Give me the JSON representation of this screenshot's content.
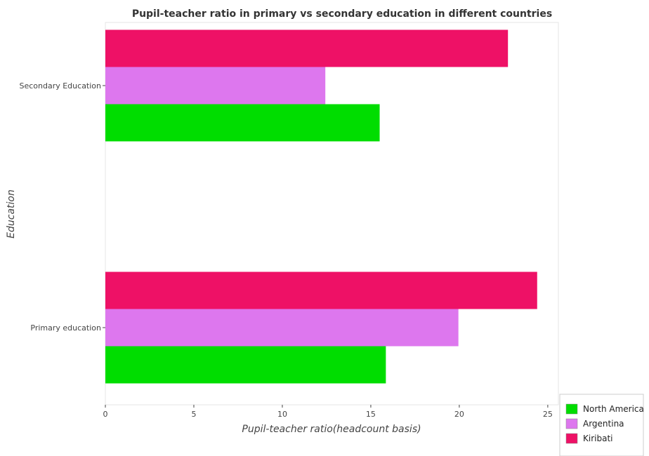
{
  "chart_data": {
    "type": "bar",
    "orientation": "horizontal",
    "title": "Pupil-teacher ratio in primary vs secondary education in different countries",
    "xlabel": "Pupil-teacher ratio(headcount basis)",
    "ylabel": "Education",
    "categories": [
      "Primary education",
      "Secondary Education"
    ],
    "series": [
      {
        "name": "North America",
        "color": "#00dd00",
        "values": [
          15.85,
          15.5
        ]
      },
      {
        "name": "Argentina",
        "color": "#dd77ee",
        "values": [
          19.95,
          12.43
        ]
      },
      {
        "name": "Kiribati",
        "color": "#ee1166",
        "values": [
          24.4,
          22.75
        ]
      }
    ],
    "xlim": [
      0,
      25.6
    ],
    "xticks": [
      0,
      5,
      10,
      15,
      20,
      25
    ],
    "xtick_labels": [
      "0",
      "5",
      "10",
      "15",
      "20",
      "25"
    ],
    "grid": false,
    "legend_position": "bottom-right"
  }
}
